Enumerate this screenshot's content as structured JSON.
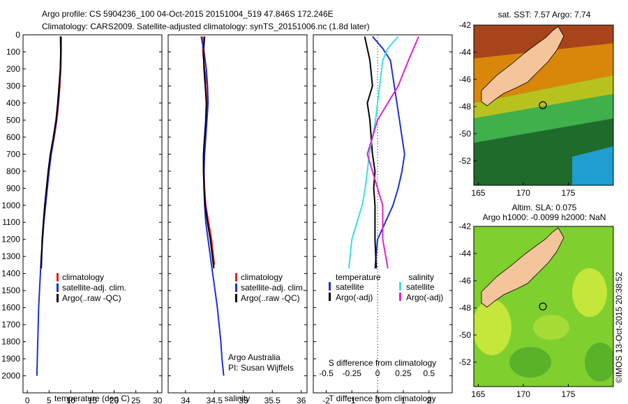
{
  "title": {
    "line1": "Argo profile: CS 5904236_100 04-Oct-2015 20151004_519 47.846S 172.246E",
    "line2": "Climatology: CARS2009. Satellite-adjusted climatology: synTS_20151006.nc (1.8d later)"
  },
  "colors": {
    "climatology": "#e8201a",
    "satellite": "#1a2fd6",
    "argo": "#000000",
    "salinity_satellite": "#38e0e0",
    "salinity_argo": "#e020d0",
    "land": "#f4c49a"
  },
  "chart_data": [
    {
      "type": "line",
      "name": "temperature-panel",
      "xlabel": "temperature (deg C)",
      "ylabel": "",
      "xlim": [
        -1,
        31
      ],
      "ylim": [
        2100,
        0
      ],
      "xticks": [
        "0",
        "5",
        "10",
        "15",
        "20",
        "25",
        "30"
      ],
      "yticks": [
        "0",
        "100",
        "200",
        "300",
        "400",
        "500",
        "600",
        "700",
        "800",
        "900",
        "1000",
        "1100",
        "1200",
        "1300",
        "1400",
        "1500",
        "1600",
        "1700",
        "1800",
        "1900",
        "2000"
      ],
      "legend": [
        "climatology",
        "satellite-adj. clim.",
        "Argo(..raw -QC)"
      ],
      "legend_position": "lower-right",
      "series": [
        {
          "name": "climatology",
          "x": [
            7.8,
            7.8,
            7.7,
            7.5,
            7.2,
            6.8,
            6.2,
            5.5,
            5.0,
            4.6,
            4.2,
            3.8,
            3.5,
            3.2
          ],
          "y": [
            10,
            100,
            200,
            300,
            400,
            500,
            600,
            700,
            800,
            900,
            1000,
            1100,
            1200,
            1350
          ]
        },
        {
          "name": "satellite-adj. clim.",
          "x": [
            7.6,
            7.7,
            7.6,
            7.4,
            7.1,
            6.7,
            6.1,
            5.5,
            5.0,
            4.6,
            4.2,
            3.8,
            3.5,
            3.2,
            3.0,
            2.8,
            2.6,
            2.5,
            2.4,
            2.3,
            2.2
          ],
          "y": [
            10,
            100,
            200,
            300,
            400,
            500,
            600,
            700,
            800,
            900,
            1000,
            1100,
            1200,
            1300,
            1400,
            1500,
            1600,
            1700,
            1800,
            1900,
            2000
          ]
        },
        {
          "name": "Argo(..raw -QC)",
          "x": [
            7.7,
            7.7,
            7.6,
            7.3,
            7.0,
            6.6,
            6.0,
            5.3,
            4.8,
            4.4,
            4.0,
            3.7,
            3.4,
            3.2
          ],
          "y": [
            10,
            100,
            200,
            300,
            400,
            500,
            600,
            700,
            800,
            900,
            1000,
            1100,
            1200,
            1370
          ]
        }
      ]
    },
    {
      "type": "line",
      "name": "salinity-panel",
      "xlabel": "salinity",
      "xlim": [
        33.7,
        36.1
      ],
      "ylim": [
        2100,
        0
      ],
      "xticks": [
        "34",
        "34.5",
        "35",
        "35.5",
        "36"
      ],
      "legend": [
        "climatology",
        "satellite-adj. clim.",
        "Argo(..raw -QC)"
      ],
      "legend_position": "lower-right",
      "annotation": [
        "Argo Australia",
        "PI: Susan Wijffels"
      ],
      "series": [
        {
          "name": "climatology",
          "x": [
            34.3,
            34.3,
            34.33,
            34.37,
            34.38,
            34.36,
            34.34,
            34.32,
            34.32,
            34.33,
            34.35,
            34.4,
            34.45,
            34.5
          ],
          "y": [
            10,
            100,
            200,
            300,
            400,
            500,
            600,
            700,
            800,
            900,
            1000,
            1100,
            1200,
            1350
          ]
        },
        {
          "name": "satellite-adj. clim.",
          "x": [
            34.27,
            34.32,
            34.36,
            34.38,
            34.39,
            34.37,
            34.35,
            34.33,
            34.32,
            34.32,
            34.33,
            34.35,
            34.39,
            34.43,
            34.47,
            34.51,
            34.55,
            34.58,
            34.61,
            34.63,
            34.66
          ],
          "y": [
            10,
            100,
            200,
            300,
            400,
            500,
            600,
            700,
            800,
            900,
            1000,
            1100,
            1200,
            1300,
            1400,
            1500,
            1600,
            1700,
            1800,
            1900,
            2000
          ]
        },
        {
          "name": "Argo(..raw -QC)",
          "x": [
            34.33,
            34.31,
            34.32,
            34.34,
            34.36,
            34.35,
            34.33,
            34.31,
            34.31,
            34.32,
            34.34,
            34.38,
            34.43,
            34.49
          ],
          "y": [
            10,
            100,
            200,
            300,
            400,
            500,
            600,
            700,
            800,
            900,
            1000,
            1100,
            1200,
            1370
          ]
        }
      ]
    },
    {
      "type": "line",
      "name": "difference-panel",
      "xlabel": "T difference from climatology",
      "xlabel_top": "S difference from climatology",
      "xlim": [
        -2.5,
        2.9
      ],
      "ylim": [
        2100,
        0
      ],
      "xticks": [
        "-2",
        "-1",
        "0",
        "1",
        "2"
      ],
      "xticks_top": [
        "-0.5",
        "-0.25",
        "0",
        "0.25",
        "0.5"
      ],
      "legend_left_title": "temperature",
      "legend_left": [
        "satellite",
        "Argo(-adj)"
      ],
      "legend_right_title": "salinity",
      "legend_right": [
        "satellite",
        "Argo(-adj)"
      ],
      "series": [
        {
          "name": "temperature satellite",
          "x": [
            -0.2,
            0.2,
            0.5,
            0.65,
            0.75,
            0.85,
            0.95,
            1.05,
            0.95,
            0.8,
            0.6,
            0.3,
            0.0,
            -0.1
          ],
          "y": [
            10,
            80,
            150,
            300,
            400,
            500,
            600,
            700,
            800,
            900,
            1000,
            1100,
            1200,
            1370
          ]
        },
        {
          "name": "temperature Argo(-adj)",
          "x": [
            -0.5,
            -0.4,
            -0.3,
            -0.2,
            -0.4,
            -0.3,
            -0.25,
            -0.2,
            -0.1,
            -0.15,
            -0.1,
            -0.1,
            -0.1,
            -0.05
          ],
          "y": [
            10,
            80,
            150,
            300,
            400,
            500,
            600,
            700,
            800,
            900,
            1000,
            1100,
            1200,
            1370
          ]
        },
        {
          "name": "salinity satellite",
          "x": [
            0.2,
            0.1,
            0.05,
            0.02,
            0.0,
            -0.02,
            -0.05,
            -0.08,
            -0.1,
            -0.12,
            -0.15,
            -0.2,
            -0.25,
            -0.28
          ],
          "y": [
            10,
            80,
            150,
            300,
            400,
            500,
            600,
            700,
            800,
            900,
            1000,
            1100,
            1200,
            1370
          ]
        },
        {
          "name": "salinity Argo(-adj)",
          "x": [
            0.4,
            0.35,
            0.3,
            0.2,
            0.1,
            0.0,
            -0.05,
            -0.1,
            -0.05,
            0.0,
            0.05,
            0.05,
            0.05,
            0.1
          ],
          "y": [
            10,
            80,
            150,
            300,
            400,
            500,
            600,
            700,
            800,
            900,
            1000,
            1100,
            1200,
            1370
          ]
        }
      ]
    },
    {
      "type": "heatmap",
      "name": "sst-map",
      "title": "sat. SST: 7.57  Argo: 7.74",
      "xlim": [
        164.5,
        180
      ],
      "ylim": [
        -53.8,
        -42
      ],
      "xticks": [
        "165",
        "170",
        "175"
      ],
      "yticks": [
        "-42",
        "-44",
        "-46",
        "-48",
        "-50",
        "-52"
      ],
      "argo_position": {
        "lon": 172.246,
        "lat": -47.846
      }
    },
    {
      "type": "heatmap",
      "name": "sla-map",
      "title_line1": "Altim. SLA: 0.075",
      "title_line2": "Argo h1000: -0.0099  h2000: NaN",
      "xlim": [
        164.5,
        180
      ],
      "ylim": [
        -53.8,
        -42
      ],
      "xticks": [
        "165",
        "170",
        "175"
      ],
      "yticks": [
        "-42",
        "-44",
        "-46",
        "-48",
        "-50",
        "-52"
      ],
      "argo_position": {
        "lon": 172.246,
        "lat": -47.846
      }
    }
  ],
  "footer": {
    "stamp": "©IMOS 13-Oct-2015 20:38:52"
  }
}
